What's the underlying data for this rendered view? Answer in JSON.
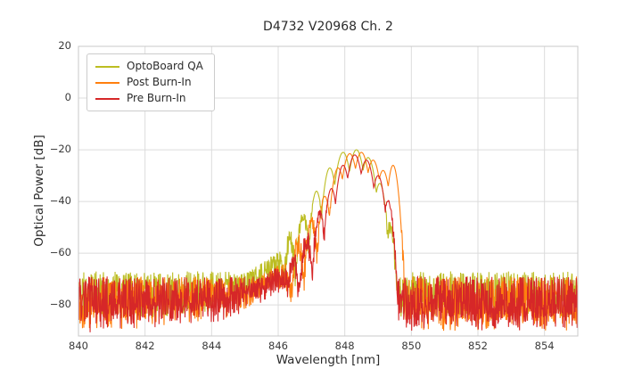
{
  "chart_data": {
    "type": "line",
    "title": "D4732 V20968 Ch. 2",
    "xlabel": "Wavelength [nm]",
    "ylabel": "Optical Power [dB]",
    "xlim": [
      840,
      855
    ],
    "ylim": [
      -92,
      20
    ],
    "grid": true,
    "legend_position": "upper left",
    "noise_floor_db": -80,
    "sample_step_nm": 0.01,
    "xticks": {
      "values": [
        840,
        842,
        844,
        846,
        848,
        850,
        852,
        854
      ],
      "labels": [
        "840",
        "842",
        "844",
        "846",
        "848",
        "850",
        "852",
        "854"
      ]
    },
    "yticks": {
      "values": [
        20,
        0,
        -20,
        -40,
        -60,
        -80
      ],
      "labels": [
        "20",
        "0",
        "−20",
        "−40",
        "−60",
        "−80"
      ]
    },
    "series": [
      {
        "name": "OptoBoard QA",
        "color": "#bcbd22",
        "seed": 11,
        "noise_floor": -76,
        "noise_amp": 9,
        "peak_wavelength_nm": 848.35,
        "peak_power_db": -20,
        "shoulder": [
          [
            840,
            -86
          ],
          [
            844,
            -79
          ],
          [
            845,
            -72
          ],
          [
            845.6,
            -68
          ],
          [
            846.05,
            -64
          ],
          [
            846.5,
            -86
          ],
          [
            855,
            -86
          ]
        ],
        "modes": [
          [
            845.95,
            -63,
            500
          ],
          [
            846.35,
            -55,
            500
          ],
          [
            846.75,
            -46,
            450
          ],
          [
            847.15,
            -36,
            400
          ],
          [
            847.55,
            -27,
            300
          ],
          [
            847.95,
            -21,
            200
          ],
          [
            848.35,
            -20,
            200
          ],
          [
            848.7,
            -23,
            220
          ],
          [
            849.05,
            -33,
            350
          ],
          [
            849.35,
            -50,
            520
          ]
        ]
      },
      {
        "name": "Post Burn-In",
        "color": "#ff7f0e",
        "seed": 22,
        "noise_floor": -79.5,
        "noise_amp": 10.5,
        "peak_wavelength_nm": 848.5,
        "peak_power_db": -21,
        "shoulder": [
          [
            840,
            -87
          ],
          [
            844.5,
            -80
          ],
          [
            845.5,
            -73
          ],
          [
            846.2,
            -68
          ],
          [
            846.65,
            -87
          ],
          [
            855,
            -87
          ]
        ],
        "modes": [
          [
            846.6,
            -57,
            500
          ],
          [
            847.0,
            -48,
            450
          ],
          [
            847.4,
            -38,
            400
          ],
          [
            847.8,
            -27,
            280
          ],
          [
            848.15,
            -21.5,
            200
          ],
          [
            848.5,
            -21,
            200
          ],
          [
            848.85,
            -24,
            220
          ],
          [
            849.15,
            -28,
            260
          ],
          [
            849.45,
            -26,
            400
          ]
        ]
      },
      {
        "name": "Pre Burn-In",
        "color": "#d62728",
        "seed": 33,
        "noise_floor": -80,
        "noise_amp": 11,
        "peak_wavelength_nm": 848.3,
        "peak_power_db": -22,
        "shoulder": [
          [
            840,
            -87
          ],
          [
            844.5,
            -81
          ],
          [
            845.5,
            -74
          ],
          [
            846.2,
            -69
          ],
          [
            846.55,
            -87
          ],
          [
            855,
            -87
          ]
        ],
        "modes": [
          [
            846.45,
            -62,
            520
          ],
          [
            846.85,
            -55,
            500
          ],
          [
            847.25,
            -45,
            450
          ],
          [
            847.6,
            -35,
            380
          ],
          [
            847.95,
            -26,
            280
          ],
          [
            848.3,
            -22,
            200
          ],
          [
            848.65,
            -24,
            220
          ],
          [
            849.0,
            -30,
            300
          ],
          [
            849.3,
            -40,
            480
          ]
        ]
      }
    ]
  }
}
